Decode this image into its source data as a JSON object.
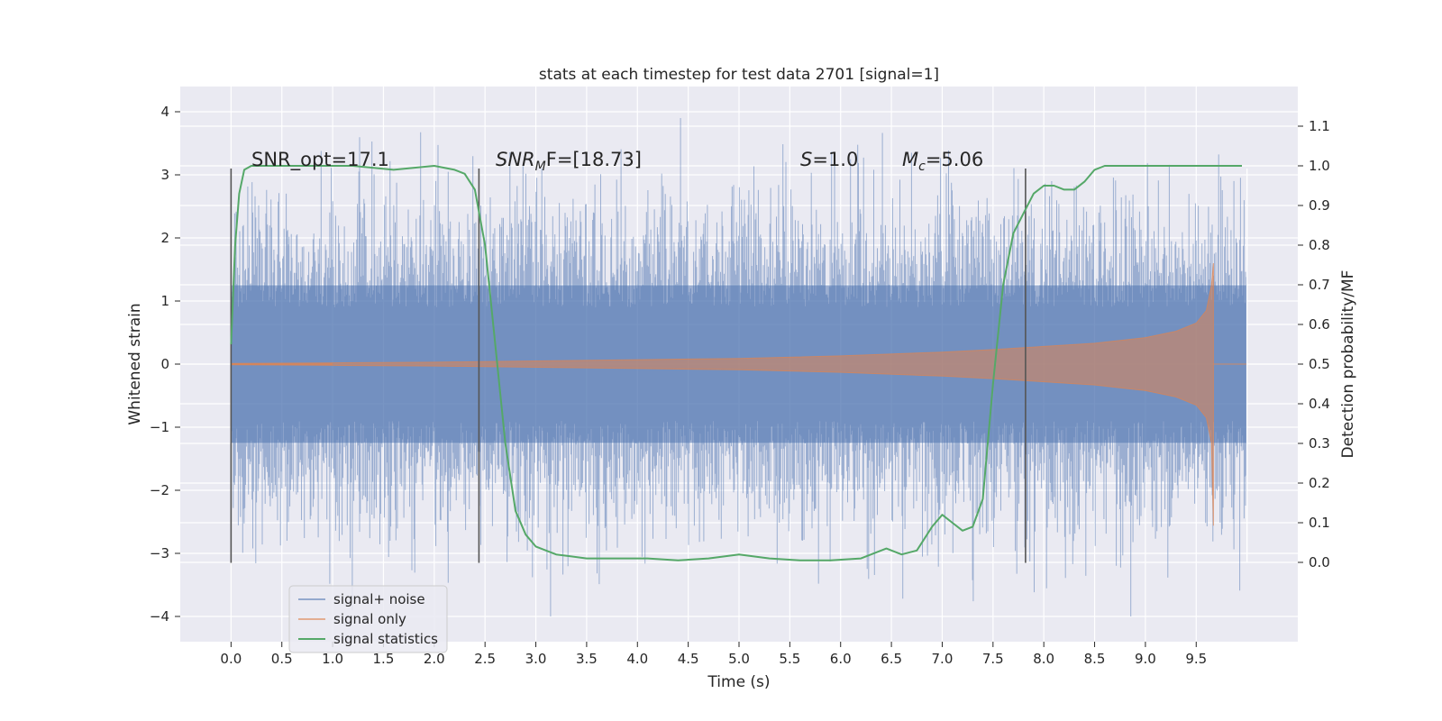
{
  "chart_data": {
    "type": "line",
    "title": "stats at each timestep for test data 2701 [signal=1]",
    "xlabel": "Time (s)",
    "ylabel": "Whitened strain",
    "ylabel_right": "Detection probability/MF",
    "xlim": [
      -0.5,
      10.5
    ],
    "ylim": [
      -4.4,
      4.4
    ],
    "ylim_right": [
      -0.2,
      1.2
    ],
    "x_ticks": [
      0.0,
      0.5,
      1.0,
      1.5,
      2.0,
      2.5,
      3.0,
      3.5,
      4.0,
      4.5,
      5.0,
      5.5,
      6.0,
      6.5,
      7.0,
      7.5,
      8.0,
      8.5,
      9.0,
      9.5
    ],
    "x_tick_labels": [
      "0.0",
      "0.5",
      "1.0",
      "1.5",
      "2.0",
      "2.5",
      "3.0",
      "3.5",
      "4.0",
      "4.5",
      "5.0",
      "5.5",
      "6.0",
      "6.5",
      "7.0",
      "7.5",
      "8.0",
      "8.5",
      "9.0",
      "9.5"
    ],
    "y_ticks": [
      -4,
      -3,
      -2,
      -1,
      0,
      1,
      2,
      3,
      4
    ],
    "y_tick_labels": [
      "−4",
      "−3",
      "−2",
      "−1",
      "0",
      "1",
      "2",
      "3",
      "4"
    ],
    "y_ticks_right": [
      0.0,
      0.1,
      0.2,
      0.3,
      0.4,
      0.5,
      0.6,
      0.7,
      0.8,
      0.9,
      1.0,
      1.1
    ],
    "y_tick_labels_right": [
      "0.0",
      "0.1",
      "0.2",
      "0.3",
      "0.4",
      "0.5",
      "0.6",
      "0.7",
      "0.8",
      "0.9",
      "1.0",
      "1.1"
    ],
    "grid": true,
    "legend_position": "bottom-left",
    "series": [
      {
        "name": "signal+ noise",
        "color": "#4c72b0",
        "kind": "noise-band",
        "x_range": [
          0.0,
          10.0
        ],
        "typical_amplitude": 1.25,
        "max": 3.9,
        "min": -4.0
      },
      {
        "name": "signal only",
        "color": "#dd8452",
        "kind": "chirp-envelope",
        "envelope": {
          "x": [
            0.0,
            1.0,
            2.0,
            3.0,
            4.0,
            5.0,
            6.0,
            7.0,
            7.5,
            8.0,
            8.5,
            9.0,
            9.3,
            9.5,
            9.6,
            9.65,
            9.67
          ],
          "y": [
            0.01,
            0.02,
            0.03,
            0.05,
            0.07,
            0.09,
            0.13,
            0.19,
            0.23,
            0.28,
            0.33,
            0.42,
            0.52,
            0.65,
            0.85,
            1.25,
            1.6
          ]
        }
      },
      {
        "name": "signal statistics",
        "color": "#55a868",
        "kind": "line",
        "axis": "right",
        "x": [
          0.0,
          0.04,
          0.08,
          0.13,
          0.2,
          0.4,
          0.8,
          1.2,
          1.6,
          2.0,
          2.2,
          2.3,
          2.4,
          2.5,
          2.6,
          2.7,
          2.8,
          2.9,
          3.0,
          3.2,
          3.5,
          3.8,
          4.1,
          4.4,
          4.7,
          5.0,
          5.3,
          5.6,
          5.9,
          6.2,
          6.45,
          6.6,
          6.75,
          6.9,
          7.0,
          7.1,
          7.2,
          7.3,
          7.4,
          7.5,
          7.6,
          7.7,
          7.8,
          7.9,
          8.0,
          8.1,
          8.2,
          8.3,
          8.4,
          8.5,
          8.6,
          8.8,
          9.0,
          9.5,
          9.95
        ],
        "y": [
          0.55,
          0.8,
          0.93,
          0.99,
          1.0,
          1.0,
          1.0,
          1.0,
          0.99,
          1.0,
          0.99,
          0.98,
          0.94,
          0.8,
          0.55,
          0.3,
          0.13,
          0.07,
          0.04,
          0.02,
          0.01,
          0.01,
          0.01,
          0.005,
          0.01,
          0.02,
          0.01,
          0.005,
          0.005,
          0.01,
          0.035,
          0.02,
          0.03,
          0.09,
          0.12,
          0.1,
          0.08,
          0.09,
          0.16,
          0.45,
          0.7,
          0.83,
          0.88,
          0.93,
          0.95,
          0.95,
          0.94,
          0.94,
          0.96,
          0.99,
          1.0,
          1.0,
          1.0,
          1.0,
          1.0
        ]
      }
    ],
    "vertical_lines": {
      "color": "#555555",
      "x": [
        0.0,
        2.44,
        7.82
      ],
      "y_range": [
        -3.15,
        3.1
      ]
    },
    "annotations": [
      {
        "text": "SNR_opt=17.1",
        "x": 0.2,
        "y": 3.2
      },
      {
        "text_parts": [
          "SNR",
          "M",
          "F=[18.73]"
        ],
        "x": 2.6,
        "y": 3.2
      },
      {
        "text_parts": [
          "S",
          "=1.0"
        ],
        "x": 5.6,
        "y": 3.2
      },
      {
        "text_parts": [
          "M",
          "c",
          "=5.06"
        ],
        "x": 6.6,
        "y": 3.2
      }
    ]
  }
}
